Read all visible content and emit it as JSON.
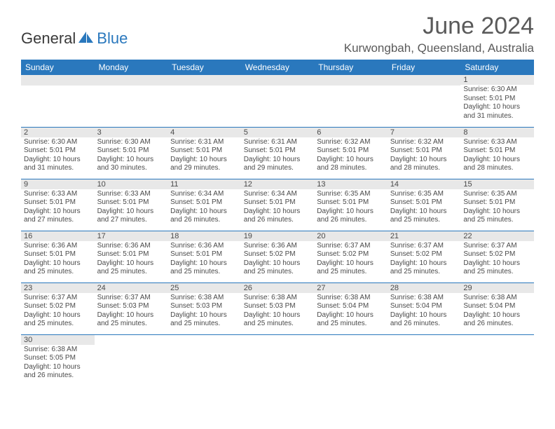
{
  "header": {
    "logo_general": "General",
    "logo_blue": "Blue",
    "month_title": "June 2024",
    "location": "Kurwongbah, Queensland, Australia"
  },
  "colors": {
    "header_bg": "#2a78bd",
    "header_text": "#ffffff",
    "daynum_bg": "#e8e8e8",
    "text": "#4a4a4a",
    "border": "#2a78bd"
  },
  "weekdays": [
    "Sunday",
    "Monday",
    "Tuesday",
    "Wednesday",
    "Thursday",
    "Friday",
    "Saturday"
  ],
  "weeks": [
    [
      null,
      null,
      null,
      null,
      null,
      null,
      {
        "n": "1",
        "sr": "Sunrise: 6:30 AM",
        "ss": "Sunset: 5:01 PM",
        "dl1": "Daylight: 10 hours",
        "dl2": "and 31 minutes."
      }
    ],
    [
      {
        "n": "2",
        "sr": "Sunrise: 6:30 AM",
        "ss": "Sunset: 5:01 PM",
        "dl1": "Daylight: 10 hours",
        "dl2": "and 31 minutes."
      },
      {
        "n": "3",
        "sr": "Sunrise: 6:30 AM",
        "ss": "Sunset: 5:01 PM",
        "dl1": "Daylight: 10 hours",
        "dl2": "and 30 minutes."
      },
      {
        "n": "4",
        "sr": "Sunrise: 6:31 AM",
        "ss": "Sunset: 5:01 PM",
        "dl1": "Daylight: 10 hours",
        "dl2": "and 29 minutes."
      },
      {
        "n": "5",
        "sr": "Sunrise: 6:31 AM",
        "ss": "Sunset: 5:01 PM",
        "dl1": "Daylight: 10 hours",
        "dl2": "and 29 minutes."
      },
      {
        "n": "6",
        "sr": "Sunrise: 6:32 AM",
        "ss": "Sunset: 5:01 PM",
        "dl1": "Daylight: 10 hours",
        "dl2": "and 28 minutes."
      },
      {
        "n": "7",
        "sr": "Sunrise: 6:32 AM",
        "ss": "Sunset: 5:01 PM",
        "dl1": "Daylight: 10 hours",
        "dl2": "and 28 minutes."
      },
      {
        "n": "8",
        "sr": "Sunrise: 6:33 AM",
        "ss": "Sunset: 5:01 PM",
        "dl1": "Daylight: 10 hours",
        "dl2": "and 28 minutes."
      }
    ],
    [
      {
        "n": "9",
        "sr": "Sunrise: 6:33 AM",
        "ss": "Sunset: 5:01 PM",
        "dl1": "Daylight: 10 hours",
        "dl2": "and 27 minutes."
      },
      {
        "n": "10",
        "sr": "Sunrise: 6:33 AM",
        "ss": "Sunset: 5:01 PM",
        "dl1": "Daylight: 10 hours",
        "dl2": "and 27 minutes."
      },
      {
        "n": "11",
        "sr": "Sunrise: 6:34 AM",
        "ss": "Sunset: 5:01 PM",
        "dl1": "Daylight: 10 hours",
        "dl2": "and 26 minutes."
      },
      {
        "n": "12",
        "sr": "Sunrise: 6:34 AM",
        "ss": "Sunset: 5:01 PM",
        "dl1": "Daylight: 10 hours",
        "dl2": "and 26 minutes."
      },
      {
        "n": "13",
        "sr": "Sunrise: 6:35 AM",
        "ss": "Sunset: 5:01 PM",
        "dl1": "Daylight: 10 hours",
        "dl2": "and 26 minutes."
      },
      {
        "n": "14",
        "sr": "Sunrise: 6:35 AM",
        "ss": "Sunset: 5:01 PM",
        "dl1": "Daylight: 10 hours",
        "dl2": "and 25 minutes."
      },
      {
        "n": "15",
        "sr": "Sunrise: 6:35 AM",
        "ss": "Sunset: 5:01 PM",
        "dl1": "Daylight: 10 hours",
        "dl2": "and 25 minutes."
      }
    ],
    [
      {
        "n": "16",
        "sr": "Sunrise: 6:36 AM",
        "ss": "Sunset: 5:01 PM",
        "dl1": "Daylight: 10 hours",
        "dl2": "and 25 minutes."
      },
      {
        "n": "17",
        "sr": "Sunrise: 6:36 AM",
        "ss": "Sunset: 5:01 PM",
        "dl1": "Daylight: 10 hours",
        "dl2": "and 25 minutes."
      },
      {
        "n": "18",
        "sr": "Sunrise: 6:36 AM",
        "ss": "Sunset: 5:01 PM",
        "dl1": "Daylight: 10 hours",
        "dl2": "and 25 minutes."
      },
      {
        "n": "19",
        "sr": "Sunrise: 6:36 AM",
        "ss": "Sunset: 5:02 PM",
        "dl1": "Daylight: 10 hours",
        "dl2": "and 25 minutes."
      },
      {
        "n": "20",
        "sr": "Sunrise: 6:37 AM",
        "ss": "Sunset: 5:02 PM",
        "dl1": "Daylight: 10 hours",
        "dl2": "and 25 minutes."
      },
      {
        "n": "21",
        "sr": "Sunrise: 6:37 AM",
        "ss": "Sunset: 5:02 PM",
        "dl1": "Daylight: 10 hours",
        "dl2": "and 25 minutes."
      },
      {
        "n": "22",
        "sr": "Sunrise: 6:37 AM",
        "ss": "Sunset: 5:02 PM",
        "dl1": "Daylight: 10 hours",
        "dl2": "and 25 minutes."
      }
    ],
    [
      {
        "n": "23",
        "sr": "Sunrise: 6:37 AM",
        "ss": "Sunset: 5:02 PM",
        "dl1": "Daylight: 10 hours",
        "dl2": "and 25 minutes."
      },
      {
        "n": "24",
        "sr": "Sunrise: 6:37 AM",
        "ss": "Sunset: 5:03 PM",
        "dl1": "Daylight: 10 hours",
        "dl2": "and 25 minutes."
      },
      {
        "n": "25",
        "sr": "Sunrise: 6:38 AM",
        "ss": "Sunset: 5:03 PM",
        "dl1": "Daylight: 10 hours",
        "dl2": "and 25 minutes."
      },
      {
        "n": "26",
        "sr": "Sunrise: 6:38 AM",
        "ss": "Sunset: 5:03 PM",
        "dl1": "Daylight: 10 hours",
        "dl2": "and 25 minutes."
      },
      {
        "n": "27",
        "sr": "Sunrise: 6:38 AM",
        "ss": "Sunset: 5:04 PM",
        "dl1": "Daylight: 10 hours",
        "dl2": "and 25 minutes."
      },
      {
        "n": "28",
        "sr": "Sunrise: 6:38 AM",
        "ss": "Sunset: 5:04 PM",
        "dl1": "Daylight: 10 hours",
        "dl2": "and 26 minutes."
      },
      {
        "n": "29",
        "sr": "Sunrise: 6:38 AM",
        "ss": "Sunset: 5:04 PM",
        "dl1": "Daylight: 10 hours",
        "dl2": "and 26 minutes."
      }
    ],
    [
      {
        "n": "30",
        "sr": "Sunrise: 6:38 AM",
        "ss": "Sunset: 5:05 PM",
        "dl1": "Daylight: 10 hours",
        "dl2": "and 26 minutes."
      },
      null,
      null,
      null,
      null,
      null,
      null
    ]
  ]
}
